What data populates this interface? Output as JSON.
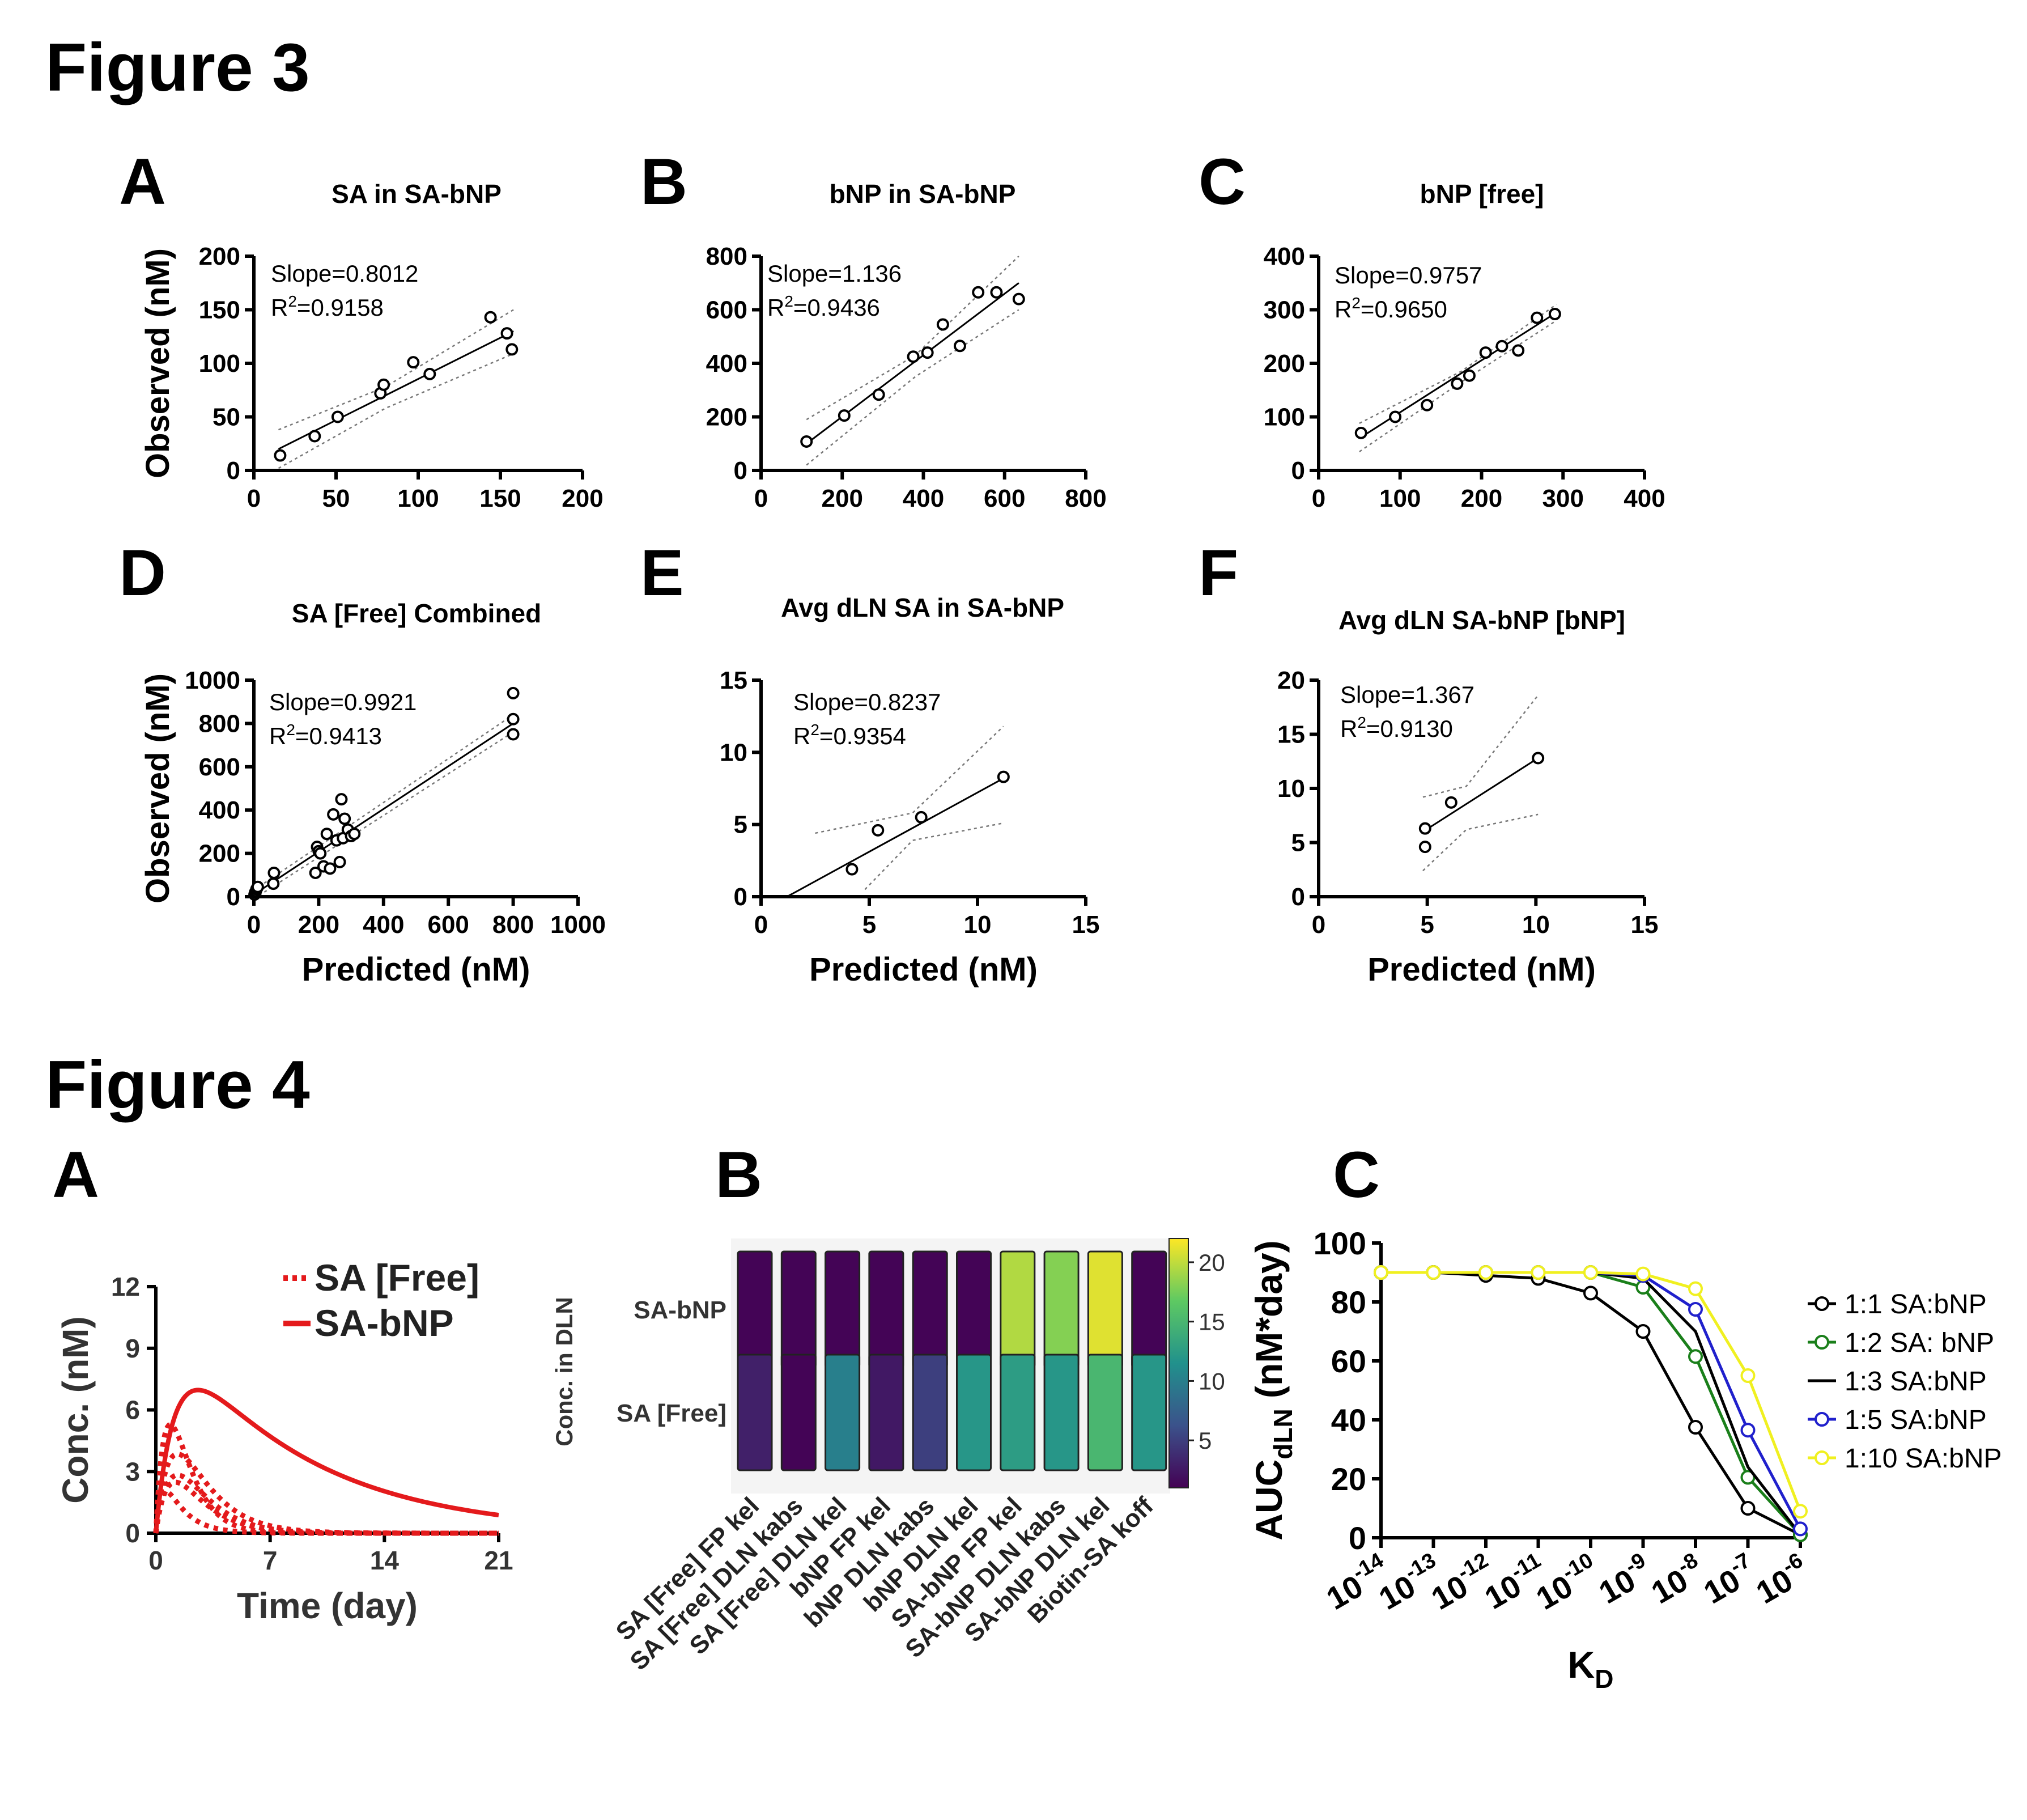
{
  "figures": [
    {
      "title": "Figure 3",
      "panel_letters": [
        "A",
        "B",
        "C",
        "D",
        "E",
        "F"
      ]
    },
    {
      "title": "Figure 4",
      "panel_letters": [
        "A",
        "B",
        "C"
      ]
    }
  ],
  "chart_data": [
    {
      "id": "3A",
      "type": "scatter",
      "title": "SA in SA-bNP",
      "xlabel": "",
      "ylabel": "Observed (nM)",
      "xlim": [
        0,
        200
      ],
      "ylim": [
        0,
        200
      ],
      "xticks": [
        0,
        50,
        100,
        150,
        200
      ],
      "yticks": [
        0,
        50,
        100,
        150,
        200
      ],
      "slope_label": "Slope=0.8012",
      "r2_value": "=0.9158",
      "x": [
        16,
        37,
        51,
        77,
        79,
        97,
        107,
        144,
        154,
        157
      ],
      "y": [
        14,
        32,
        50,
        72,
        80,
        101,
        90,
        143,
        128,
        113
      ],
      "fit_line": [
        [
          15,
          20
        ],
        [
          158,
          130
        ]
      ],
      "ci_upper": [
        [
          15,
          38
        ],
        [
          80,
          78
        ],
        [
          158,
          150
        ]
      ],
      "ci_lower": [
        [
          15,
          2
        ],
        [
          80,
          58
        ],
        [
          158,
          109
        ]
      ]
    },
    {
      "id": "3B",
      "type": "scatter",
      "title": "bNP in SA-bNP",
      "xlabel": "",
      "ylabel": "",
      "xlim": [
        0,
        800
      ],
      "ylim": [
        0,
        800
      ],
      "xticks": [
        0,
        200,
        400,
        600,
        800
      ],
      "yticks": [
        0,
        200,
        400,
        600,
        800
      ],
      "slope_label": "Slope=1.136",
      "r2_value": "=0.9436",
      "x": [
        112,
        205,
        290,
        375,
        410,
        448,
        490,
        535,
        580,
        635
      ],
      "y": [
        108,
        205,
        283,
        425,
        440,
        545,
        465,
        665,
        665,
        640
      ],
      "fit_line": [
        [
          112,
          100
        ],
        [
          635,
          700
        ]
      ],
      "ci_upper": [
        [
          112,
          190
        ],
        [
          380,
          430
        ],
        [
          635,
          800
        ]
      ],
      "ci_lower": [
        [
          112,
          20
        ],
        [
          380,
          350
        ],
        [
          635,
          600
        ]
      ]
    },
    {
      "id": "3C",
      "type": "scatter",
      "title": "bNP [free]",
      "xlabel": "",
      "ylabel": "",
      "xlim": [
        0,
        400
      ],
      "ylim": [
        0,
        400
      ],
      "xticks": [
        0,
        100,
        200,
        300,
        400
      ],
      "yticks": [
        0,
        100,
        200,
        300,
        400
      ],
      "slope_label": "Slope=0.9757",
      "r2_value": "=0.9650",
      "x": [
        52,
        94,
        133,
        170,
        185,
        205,
        225,
        245,
        268,
        290
      ],
      "y": [
        70,
        100,
        122,
        162,
        177,
        220,
        232,
        224,
        285,
        292
      ],
      "fit_line": [
        [
          50,
          60
        ],
        [
          292,
          295
        ]
      ],
      "ci_upper": [
        [
          50,
          88
        ],
        [
          175,
          185
        ],
        [
          292,
          310
        ]
      ],
      "ci_lower": [
        [
          50,
          35
        ],
        [
          175,
          165
        ],
        [
          292,
          280
        ]
      ]
    },
    {
      "id": "3D",
      "type": "scatter",
      "title": "SA [Free] Combined",
      "xlabel": "Predicted (nM)",
      "ylabel": "Observed (nM)",
      "xlim": [
        0,
        1000
      ],
      "ylim": [
        0,
        1000
      ],
      "xticks": [
        0,
        200,
        400,
        600,
        800,
        1000
      ],
      "yticks": [
        0,
        200,
        400,
        600,
        800,
        1000
      ],
      "slope_label": "Slope=0.9921",
      "r2_value": "=0.9413",
      "x": [
        2,
        4,
        6,
        8,
        10,
        12,
        60,
        62,
        190,
        195,
        200,
        205,
        215,
        225,
        235,
        245,
        255,
        265,
        270,
        275,
        280,
        290,
        300,
        310,
        800,
        800,
        800
      ],
      "y": [
        10,
        20,
        25,
        35,
        40,
        45,
        60,
        110,
        110,
        230,
        210,
        200,
        140,
        290,
        130,
        380,
        260,
        160,
        450,
        270,
        360,
        310,
        280,
        290,
        940,
        820,
        750
      ],
      "fit_line": [
        [
          0,
          10
        ],
        [
          810,
          810
        ]
      ],
      "ci_upper": [
        [
          0,
          30
        ],
        [
          810,
          850
        ]
      ],
      "ci_lower": [
        [
          0,
          -10
        ],
        [
          810,
          770
        ]
      ]
    },
    {
      "id": "3E",
      "type": "scatter",
      "title": "Avg dLN SA in SA-bNP",
      "xlabel": "Predicted (nM)",
      "ylabel": "",
      "xlim": [
        0,
        15
      ],
      "ylim": [
        0,
        15
      ],
      "xticks": [
        0,
        5,
        10,
        15
      ],
      "yticks": [
        0,
        5,
        10,
        15
      ],
      "slope_label": "Slope=0.8237",
      "r2_value": "=0.9354",
      "x": [
        4.2,
        5.4,
        7.4,
        11.2
      ],
      "y": [
        1.9,
        4.6,
        5.5,
        8.3
      ],
      "fit_line": [
        [
          1.2,
          0
        ],
        [
          11.2,
          8.2
        ]
      ],
      "ci_upper": [
        [
          2.5,
          4.4
        ],
        [
          7,
          5.8
        ],
        [
          11.2,
          11.8
        ]
      ],
      "ci_lower": [
        [
          4.8,
          0.5
        ],
        [
          7,
          3.9
        ],
        [
          11.2,
          5.1
        ]
      ]
    },
    {
      "id": "3F",
      "type": "scatter",
      "title": "Avg dLN SA-bNP [bNP]",
      "xlabel": "Predicted (nM)",
      "ylabel": "",
      "xlim": [
        0,
        15
      ],
      "ylim": [
        0,
        20
      ],
      "xticks": [
        0,
        5,
        10,
        15
      ],
      "yticks": [
        0,
        5,
        10,
        15,
        20
      ],
      "slope_label": "Slope=1.367",
      "r2_value": "=0.9130",
      "x": [
        4.9,
        4.9,
        6.1,
        10.1
      ],
      "y": [
        4.6,
        6.3,
        8.7,
        12.8
      ],
      "fit_line": [
        [
          4.8,
          6.0
        ],
        [
          10.1,
          12.8
        ]
      ],
      "ci_upper": [
        [
          4.8,
          9.2
        ],
        [
          6.8,
          10.2
        ],
        [
          10.1,
          18.6
        ]
      ],
      "ci_lower": [
        [
          4.8,
          2.4
        ],
        [
          6.8,
          6.2
        ],
        [
          10.1,
          7.6
        ]
      ]
    },
    {
      "id": "4A",
      "type": "line",
      "title": "",
      "xlabel": "Time (day)",
      "ylabel": "Conc. (nM)",
      "xlim": [
        0,
        21
      ],
      "ylim": [
        0,
        12
      ],
      "xticks": [
        0,
        7,
        14,
        21
      ],
      "yticks": [
        0,
        3,
        6,
        9,
        12
      ],
      "series": [
        {
          "name": "SA [Free]",
          "style": "dotted",
          "color": "#e41a1c",
          "curves": [
            {
              "A": 11.7,
              "ka": 1.4,
              "ke": 0.9
            },
            {
              "A": 4.8,
              "ka": 1.2,
              "ke": 0.55
            },
            {
              "A": 7.2,
              "ka": 0.8,
              "ke": 0.7
            },
            {
              "A": 3.3,
              "ka": 3.0,
              "ke": 0.8
            },
            {
              "A": 8.0,
              "ka": 1.0,
              "ke": 0.55
            }
          ]
        },
        {
          "name": "SA-bNP",
          "style": "solid",
          "color": "#e41a1c",
          "curves": [
            {
              "A": 9.5,
              "ka": 0.9,
              "ke": 0.12
            }
          ]
        }
      ]
    },
    {
      "id": "4B",
      "type": "heatmap",
      "title": "",
      "ylabel": "Conc. in DLN",
      "rows": [
        "SA-bNP",
        "SA [Free]"
      ],
      "columns": [
        "SA [Free] FP kel",
        "SA [Free] DLN kabs",
        "SA [Free] DLN kel",
        "bNP FP kel",
        "bNP DLN kabs",
        "bNP DLN kel",
        "SA-bNP FP kel",
        "SA-bNP DLN kabs",
        "SA-bNP DLN kel",
        "Biotin-SA koff"
      ],
      "values": [
        [
          1.2,
          1.2,
          1.2,
          1.2,
          1.2,
          1.2,
          19.5,
          18.0,
          21.0,
          1.2
        ],
        [
          3.0,
          1.2,
          10.0,
          2.5,
          5.0,
          12.0,
          12.5,
          12.0,
          15.0,
          12.0
        ]
      ],
      "colorbar_ticks": [
        5,
        10,
        15,
        20
      ],
      "colorbar_range": [
        1,
        22
      ]
    },
    {
      "id": "4C",
      "type": "line",
      "title": "",
      "xlabel": "K",
      "xlabel_sub": "D",
      "ylabel": "AUC",
      "ylabel_sub": "dLN",
      "ylabel_suffix": " (nM*day)",
      "x_exponents": [
        -14,
        -13,
        -12,
        -11,
        -10,
        -9,
        -8,
        -7,
        -6
      ],
      "ylim": [
        0,
        100
      ],
      "yticks": [
        0,
        20,
        40,
        60,
        80,
        100
      ],
      "series": [
        {
          "name": "1:1 SA:bNP",
          "color": "#000000",
          "markers": true,
          "values": [
            90,
            90,
            89,
            88,
            83,
            70,
            37.5,
            10,
            1
          ]
        },
        {
          "name": "1:2 SA: bNP",
          "color": "#1a7f1a",
          "markers": true,
          "values": [
            90,
            90,
            90,
            90,
            90,
            85,
            61.5,
            20.5,
            1
          ]
        },
        {
          "name": "1:3 SA:bNP",
          "color": "#000000",
          "markers": false,
          "values": [
            90,
            90,
            90,
            90,
            90,
            88,
            70,
            24,
            1
          ]
        },
        {
          "name": "1:5 SA:bNP",
          "color": "#2020cc",
          "markers": true,
          "values": [
            90,
            90,
            90,
            90,
            90,
            89,
            77.5,
            36.5,
            3
          ]
        },
        {
          "name": "1:10 SA:bNP",
          "color": "#f0f020",
          "markers": true,
          "values": [
            90,
            90,
            90,
            90,
            90,
            89.5,
            84.5,
            55,
            9
          ]
        }
      ]
    }
  ]
}
